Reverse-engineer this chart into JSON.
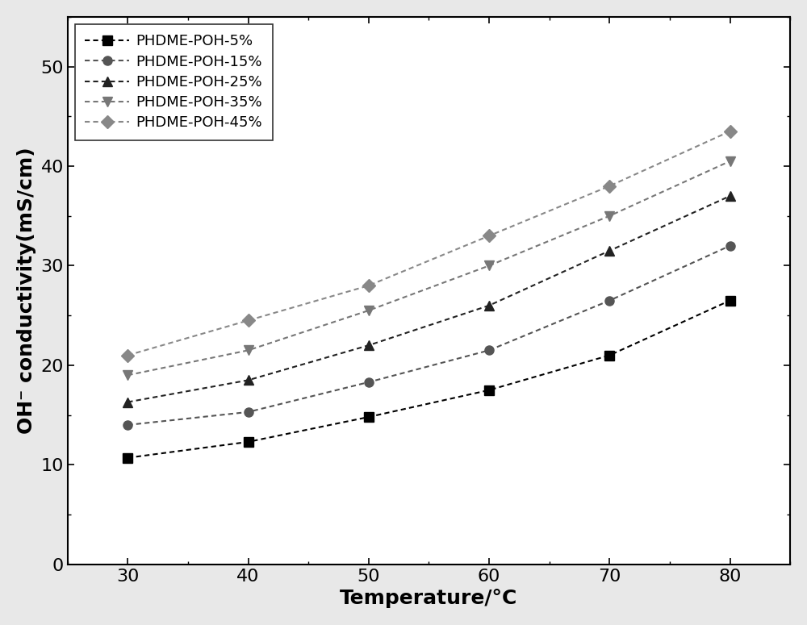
{
  "temperatures": [
    30,
    40,
    50,
    60,
    70,
    80
  ],
  "series": [
    {
      "label": "PHDME-POH-5%",
      "values": [
        10.7,
        12.3,
        14.8,
        17.5,
        21.0,
        26.5
      ],
      "marker": "s",
      "line_color": "#000000",
      "marker_color": "#000000",
      "markersize": 8
    },
    {
      "label": "PHDME-POH-15%",
      "values": [
        14.0,
        15.3,
        18.3,
        21.5,
        26.5,
        32.0
      ],
      "marker": "o",
      "line_color": "#555555",
      "marker_color": "#555555",
      "markersize": 8
    },
    {
      "label": "PHDME-POH-25%",
      "values": [
        16.3,
        18.5,
        22.0,
        26.0,
        31.5,
        37.0
      ],
      "marker": "^",
      "line_color": "#222222",
      "marker_color": "#222222",
      "markersize": 9
    },
    {
      "label": "PHDME-POH-35%",
      "values": [
        19.0,
        21.5,
        25.5,
        30.0,
        35.0,
        40.5
      ],
      "marker": "v",
      "line_color": "#777777",
      "marker_color": "#777777",
      "markersize": 9
    },
    {
      "label": "PHDME-POH-45%",
      "values": [
        21.0,
        24.5,
        28.0,
        33.0,
        38.0,
        43.5
      ],
      "marker": "D",
      "line_color": "#888888",
      "marker_color": "#888888",
      "markersize": 8
    }
  ],
  "xlabel": "Temperature/°C",
  "ylabel": "OH⁻ conductivity(mS/cm)",
  "xlim": [
    25,
    85
  ],
  "ylim": [
    0,
    55
  ],
  "yticks": [
    0,
    10,
    20,
    30,
    40,
    50
  ],
  "xticks": [
    30,
    40,
    50,
    60,
    70,
    80
  ],
  "label_fontsize": 18,
  "tick_fontsize": 16,
  "legend_fontsize": 13,
  "figure_width": 10.0,
  "figure_height": 7.75,
  "dpi": 100,
  "bg_color": "#e8e8e8",
  "plot_bg_color": "#ffffff"
}
